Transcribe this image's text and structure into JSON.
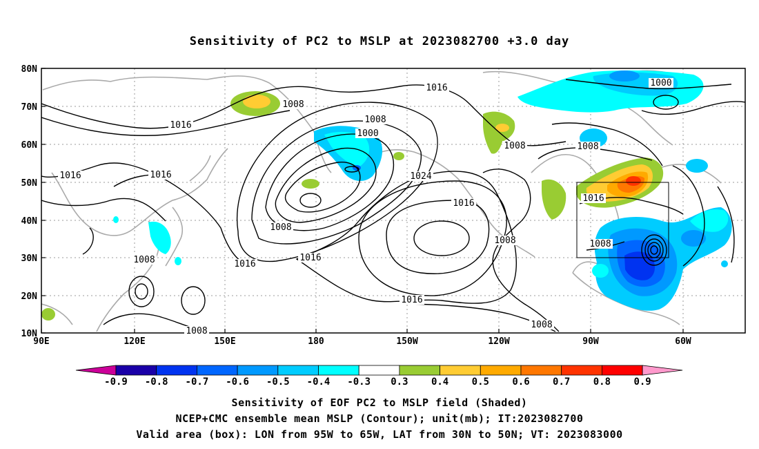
{
  "title": "Sensitivity of PC2 to MSLP at 2023082700 +3.0 day",
  "map": {
    "lon_ticks": [
      "90E",
      "120E",
      "150E",
      "180",
      "150W",
      "120W",
      "90W",
      "60W"
    ],
    "lat_ticks": [
      "80N",
      "70N",
      "60N",
      "50N",
      "40N",
      "30N",
      "20N",
      "10N"
    ],
    "contour_labels": [
      "1008",
      "1016",
      "1016",
      "1016",
      "1016",
      "1008",
      "1000",
      "1008",
      "1016",
      "1024",
      "1016",
      "1016",
      "1008",
      "1016",
      "1008",
      "1008",
      "1000",
      "1008",
      "1016",
      "1008",
      "1008",
      "1008"
    ]
  },
  "colorbar": {
    "labels": [
      "-0.9",
      "-0.8",
      "-0.7",
      "-0.6",
      "-0.5",
      "-0.4",
      "-0.3",
      "0.3",
      "0.4",
      "0.5",
      "0.6",
      "0.7",
      "0.8",
      "0.9"
    ],
    "colors": [
      "#1a00a8",
      "#0033f0",
      "#0066ff",
      "#0099ff",
      "#00ccff",
      "#00ffff",
      "#ffffff",
      "#99cc33",
      "#ffcc33",
      "#ffaa00",
      "#ff7700",
      "#ff3300",
      "#ff0000"
    ],
    "low_end_color": "#cc0099",
    "high_end_color": "#ff99cc"
  },
  "captions": {
    "line1": "Sensitivity of EOF PC2 to MSLP field (Shaded)",
    "line2": "NCEP+CMC ensemble mean MSLP (Contour); unit(mb); IT:2023082700",
    "line3": "Valid area (box): LON from 95W to 65W, LAT from 30N to 50N; VT: 2023083000"
  }
}
